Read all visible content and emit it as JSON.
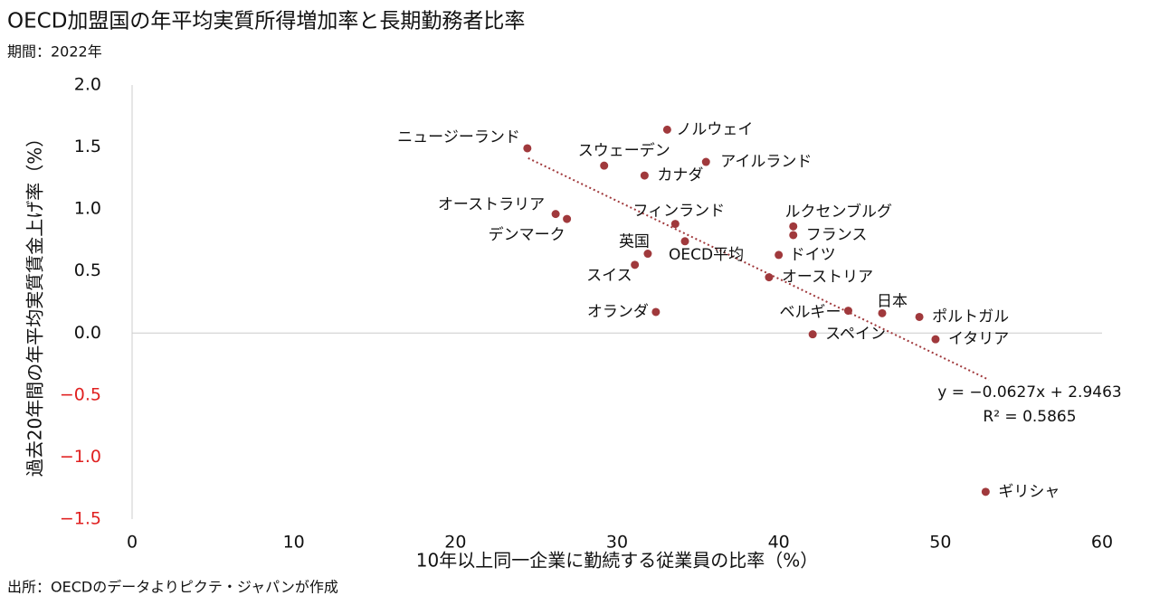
{
  "chart_data": {
    "type": "scatter",
    "title": "OECD加盟国の年平均実質所得増加率と長期勤務者比率",
    "subtitle": "期間：2022年",
    "source": "出所：OECDのデータよりピクテ・ジャパンが作成",
    "x_label": "10年以上同一企業に勤続する従業員の比率（%）",
    "y_label": "過去20年間の年平均実質賃金上げ率（%）",
    "xlim": [
      0,
      60
    ],
    "xticks": [
      0,
      10,
      20,
      30,
      40,
      50,
      60
    ],
    "ylim": [
      -1.5,
      2.0
    ],
    "yticks": [
      {
        "value": -1.5,
        "label": "−1.5"
      },
      {
        "value": -1.0,
        "label": "−1.0"
      },
      {
        "value": -0.5,
        "label": "−0.5"
      },
      {
        "value": 0,
        "label": "0.0"
      },
      0.5,
      {
        "value": 1.0,
        "label": "1.0"
      },
      1.5,
      {
        "value": 2.0,
        "label": "2.0"
      }
    ],
    "negative_tick_color": "#e02020",
    "color": "#a0393c",
    "categories": [
      "ニュージーランド",
      "ノルウェイ",
      "スウェーデン",
      "カナダ",
      "アイルランド",
      "オーストラリア",
      "デンマーク",
      "フィンランド",
      "ルクセンブルグ",
      "フランス",
      "英国",
      "OECD平均",
      "ドイツ",
      "スイス",
      "オーストリア",
      "オランダ",
      "ベルギー",
      "日本",
      "ポルトガル",
      "スペイン",
      "イタリア",
      "ギリシャ"
    ],
    "x": [
      24.45,
      33.1,
      29.2,
      31.7,
      35.5,
      26.2,
      26.9,
      33.6,
      40.9,
      40.9,
      31.9,
      34.2,
      40.0,
      31.1,
      39.4,
      32.4,
      44.3,
      46.4,
      48.7,
      42.1,
      49.7,
      52.8
    ],
    "values": [
      1.49,
      1.64,
      1.35,
      1.27,
      1.38,
      0.96,
      0.92,
      0.88,
      0.86,
      0.79,
      0.64,
      0.74,
      0.63,
      0.55,
      0.45,
      0.17,
      0.18,
      0.16,
      0.13,
      -0.01,
      -0.05,
      -1.28
    ],
    "trendline": {
      "slope": -0.0627,
      "intercept": 2.9463,
      "x": [
        24.5,
        53.0
      ],
      "equation": "y = −0.0627x + 2.9463",
      "r2": "R² = 0.5865"
    }
  }
}
